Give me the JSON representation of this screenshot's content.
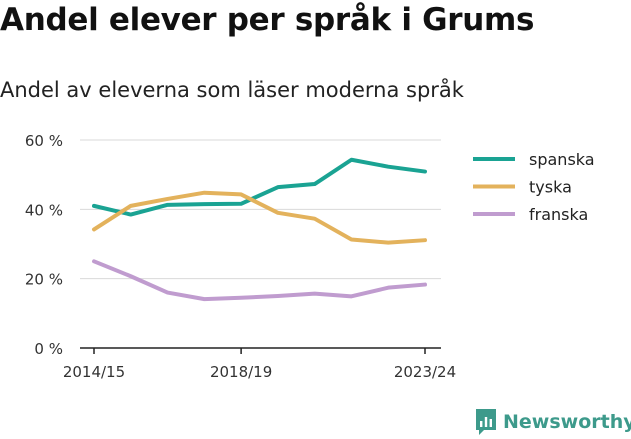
{
  "title": "Andel elever per språk i Grums",
  "subtitle": "Andel av eleverna som läser moderna språk",
  "brand": "Newsworthy",
  "colors": {
    "spanska": "#1aa393",
    "tyska": "#e3b25c",
    "franska": "#c09ccf",
    "grid": "#d9d9d9",
    "axis": "#222222",
    "brand": "#3d9a8b"
  },
  "chart_data": {
    "type": "line",
    "x": [
      "2014/15",
      "2015/16",
      "2016/17",
      "2017/18",
      "2018/19",
      "2019/20",
      "2020/21",
      "2021/22",
      "2022/23",
      "2023/24"
    ],
    "x_tick_labels": [
      "2014/15",
      "2018/19",
      "2023/24"
    ],
    "y_tick_labels": [
      "0 %",
      "20 %",
      "40 %",
      "60 %"
    ],
    "ylim": [
      0,
      60
    ],
    "y_ticks": [
      0,
      20,
      40,
      60
    ],
    "grid": true,
    "legend_position": "right",
    "series": [
      {
        "name": "spanska",
        "values": [
          41.0,
          38.5,
          41.3,
          41.5,
          41.6,
          46.4,
          47.3,
          54.3,
          52.3,
          50.9
        ]
      },
      {
        "name": "tyska",
        "values": [
          34.2,
          41.0,
          43.0,
          44.8,
          44.3,
          39.0,
          37.3,
          31.3,
          30.4,
          31.1
        ]
      },
      {
        "name": "franska",
        "values": [
          25.0,
          20.7,
          16.0,
          14.1,
          14.5,
          15.0,
          15.7,
          14.9,
          17.4,
          18.3
        ]
      }
    ]
  }
}
